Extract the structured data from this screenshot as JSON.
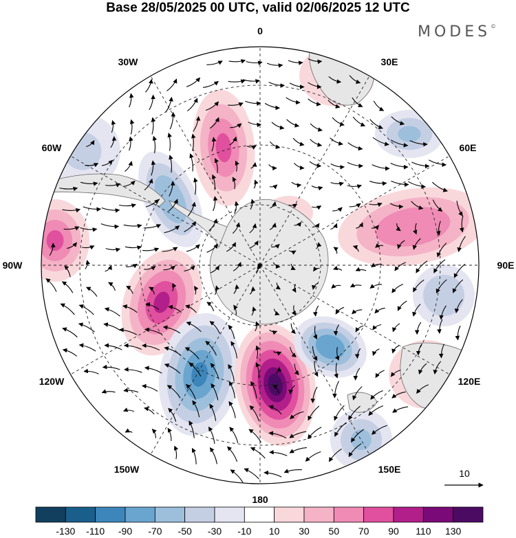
{
  "title": "Base 28/05/2025 00 UTC, valid 02/06/2025 12 UTC",
  "brand": "MODES",
  "brand_mark": "©",
  "map": {
    "projection": "south-polar-stereographic",
    "longitude_labels": [
      "0",
      "30E",
      "60E",
      "90E",
      "120E",
      "150E",
      "180",
      "150W",
      "120W",
      "90W",
      "60W",
      "30W"
    ],
    "vector_reference": "10",
    "colors": {
      "land": "#e8e8e8",
      "coast": "#555555",
      "grid": "#222222"
    },
    "anomalies": [
      {
        "name": "pink-lobe-atlantic",
        "value": 70
      },
      {
        "name": "blue-lobe-drake",
        "value": -60
      },
      {
        "name": "pink-lobe-pacific-east",
        "value": 90
      },
      {
        "name": "blue-lobe-pacific",
        "value": -90
      },
      {
        "name": "magenta-lobe-ross",
        "value": 130
      },
      {
        "name": "blue-lobe-tasman",
        "value": -80
      },
      {
        "name": "blue-lobe-nz",
        "value": -50
      },
      {
        "name": "pink-lobe-australia",
        "value": 40
      },
      {
        "name": "pink-lobe-indian",
        "value": 60
      },
      {
        "name": "blue-lobe-east-indian",
        "value": -40
      },
      {
        "name": "blue-lobe-africa",
        "value": -50
      },
      {
        "name": "pink-lobe-south-africa",
        "value": 20
      },
      {
        "name": "pink-lobe-south-america-west",
        "value": 70
      },
      {
        "name": "blue-lobe-south-america",
        "value": -30
      },
      {
        "name": "pink-lobe-weddell",
        "value": 20
      }
    ]
  },
  "colorbar": {
    "ticks": [
      "-130",
      "-110",
      "-90",
      "-70",
      "-50",
      "-30",
      "-10",
      "10",
      "30",
      "50",
      "70",
      "90",
      "110",
      "130"
    ],
    "colors": [
      "#123f5e",
      "#1a5f8c",
      "#3d86bb",
      "#6aa5cf",
      "#9dbfdc",
      "#c5cfe4",
      "#e4e5f1",
      "#ffffff",
      "#f9d8dc",
      "#f4b3c6",
      "#ef8bb4",
      "#e0509e",
      "#b21f8a",
      "#7a0a78",
      "#4b0b63"
    ]
  }
}
